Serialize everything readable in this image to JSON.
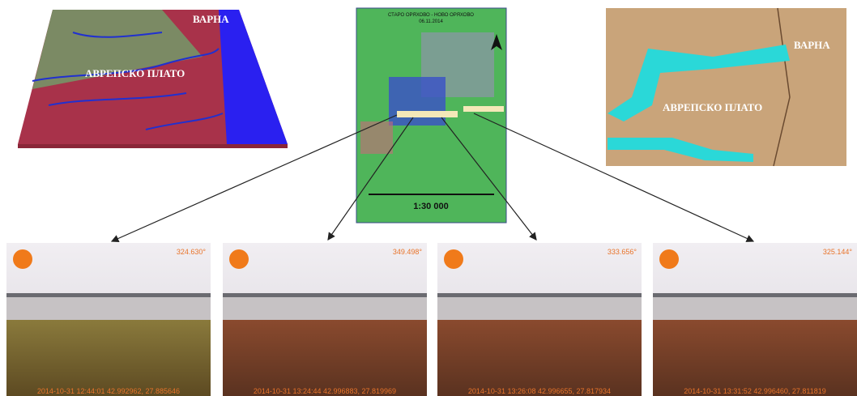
{
  "relief_map": {
    "sea_label": "ВАРНА",
    "plateau_label": "АВРЕПСКО ПЛАТО"
  },
  "location_map": {
    "title": "СТАРО ОРЯХОВО - НОВО ОРЯХОВО",
    "date": "06.11.2014",
    "scale": "1:30 000"
  },
  "old_map": {
    "city_label": "ВАРНА",
    "plateau_label": "АВРЕПСКО ПЛАТО"
  },
  "photos": [
    {
      "bearing": "324.630°",
      "timestamp": "2014-10-31 12:44:01 42.992962, 27.885646"
    },
    {
      "bearing": "349.498°",
      "timestamp": "2014-10-31 13:24:44 42.996883, 27.819969"
    },
    {
      "bearing": "333.656°",
      "timestamp": "2014-10-31 13:26:08 42.996655, 27.817934"
    },
    {
      "bearing": "325.144°",
      "timestamp": "2014-10-31 13:31:52 42.996460, 27.811819"
    }
  ]
}
